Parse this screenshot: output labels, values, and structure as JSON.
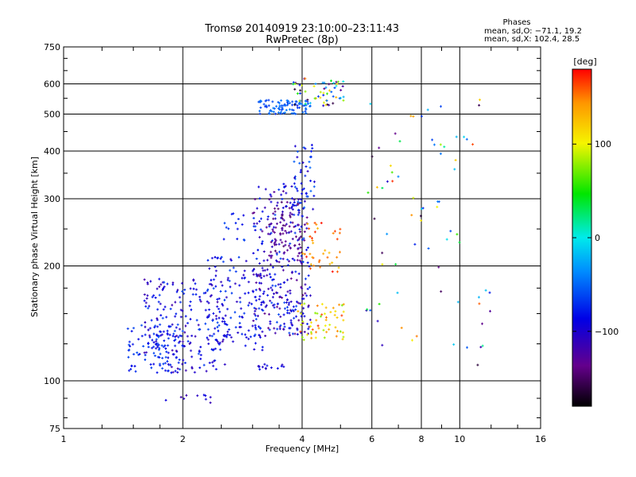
{
  "chart_data": {
    "type": "scatter",
    "title": "Tromsø 20140919 23:10:00–23:11:43",
    "subtitle": "RwPretec (8p)",
    "xlabel": "Frequency [MHz]",
    "ylabel": "Stationary phase Virtual Height [km]",
    "x_scale": "log2",
    "y_scale": "log",
    "xlim": [
      1,
      16
    ],
    "ylim": [
      75,
      750
    ],
    "x_ticks": [
      1,
      2,
      4,
      6,
      8,
      10,
      16
    ],
    "x_tick_labels": [
      "1",
      "2",
      "4",
      "6",
      "8",
      "10",
      "16"
    ],
    "y_ticks": [
      75,
      100,
      200,
      300,
      400,
      500,
      600,
      750
    ],
    "y_tick_labels": [
      "75",
      "100",
      "200",
      "300",
      "400",
      "500",
      "600",
      "750"
    ],
    "grid": true,
    "stats": {
      "heading": "Phases",
      "line_o": "mean, sd,O: −71.1, 19.2",
      "line_x": "mean, sd,X: 102.4, 28.5"
    },
    "colorbar": {
      "label": "[deg]",
      "range": [
        -180,
        180
      ],
      "ticks": [
        100,
        0,
        -100
      ],
      "tick_labels": [
        "100",
        "0",
        "−100"
      ]
    },
    "clusters": [
      {
        "f": [
          1.45,
          2.0
        ],
        "h": [
          105,
          140
        ],
        "phase": [
          -90,
          -60
        ],
        "n": 90
      },
      {
        "f": [
          1.6,
          2.6
        ],
        "h": [
          105,
          185
        ],
        "phase": [
          -120,
          -60
        ],
        "n": 220
      },
      {
        "f": [
          2.3,
          3.2
        ],
        "h": [
          120,
          215
        ],
        "phase": [
          -110,
          -60
        ],
        "n": 120
      },
      {
        "f": [
          2.5,
          2.9
        ],
        "h": [
          225,
          275
        ],
        "phase": [
          -90,
          -60
        ],
        "n": 14
      },
      {
        "f": [
          3.0,
          4.2
        ],
        "h": [
          130,
          330
        ],
        "phase": [
          -140,
          -60
        ],
        "n": 330
      },
      {
        "f": [
          3.3,
          4.0
        ],
        "h": [
          200,
          300
        ],
        "phase": [
          -150,
          -120
        ],
        "n": 60
      },
      {
        "f": [
          3.8,
          4.3
        ],
        "h": [
          280,
          420
        ],
        "phase": [
          -110,
          -50
        ],
        "n": 45
      },
      {
        "f": [
          3.9,
          5.1
        ],
        "h": [
          128,
          160
        ],
        "phase": [
          70,
          170
        ],
        "n": 55
      },
      {
        "f": [
          4.0,
          5.0
        ],
        "h": [
          190,
          260
        ],
        "phase": [
          120,
          180
        ],
        "n": 40
      },
      {
        "f": [
          3.1,
          4.2
        ],
        "h": [
          500,
          545
        ],
        "phase": [
          -70,
          -40
        ],
        "n": 90
      },
      {
        "f": [
          3.8,
          5.1
        ],
        "h": [
          525,
          620
        ],
        "phase": [
          -170,
          170
        ],
        "n": 60
      },
      {
        "f": [
          1.8,
          2.4
        ],
        "h": [
          87,
          92
        ],
        "phase": [
          -120,
          -90
        ],
        "n": 10
      },
      {
        "f": [
          3.1,
          3.6
        ],
        "h": [
          107,
          111
        ],
        "phase": [
          -110,
          -80
        ],
        "n": 14
      },
      {
        "f": [
          5.8,
          12.0
        ],
        "h": [
          110,
          560
        ],
        "phase": [
          -170,
          170
        ],
        "n": 75
      }
    ]
  }
}
